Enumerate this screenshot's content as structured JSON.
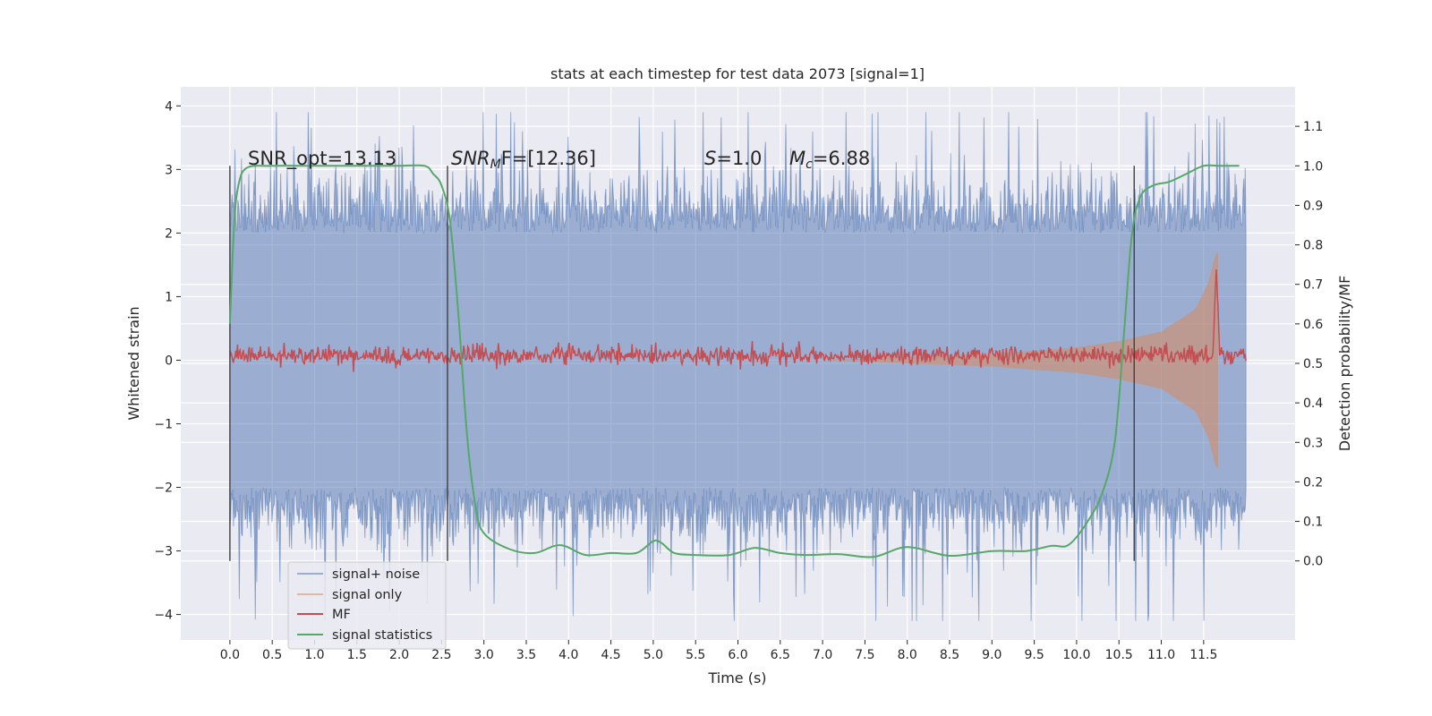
{
  "chart_data": {
    "type": "line",
    "title": "stats at each timestep for test data 2073 [signal=1]",
    "xlabel": "Time (s)",
    "ylabel": "Whitened strain",
    "ylabel_right": "Detection probability/MF",
    "xlim": [
      -0.58,
      12.58
    ],
    "ylim": [
      -4.4,
      4.3
    ],
    "ylim_right": [
      -0.2,
      1.2
    ],
    "x_ticks": [
      "0.0",
      "0.5",
      "1.0",
      "1.5",
      "2.0",
      "2.5",
      "3.0",
      "3.5",
      "4.0",
      "4.5",
      "5.0",
      "5.5",
      "6.0",
      "6.5",
      "7.0",
      "7.5",
      "8.0",
      "8.5",
      "9.0",
      "9.5",
      "10.0",
      "10.5",
      "11.0",
      "11.5"
    ],
    "y_ticks": [
      "4",
      "3",
      "2",
      "1",
      "0",
      "−1",
      "−2",
      "−3",
      "−4"
    ],
    "y_ticks_right": [
      "1.1",
      "1.0",
      "0.9",
      "0.8",
      "0.7",
      "0.6",
      "0.5",
      "0.4",
      "0.3",
      "0.2",
      "0.1",
      "0.0"
    ],
    "grid": true,
    "legend_position": "lower-left",
    "colors": {
      "signal_noise": "#4c72b0",
      "signal_only": "#dd8452",
      "mf": "#c44e52",
      "statistics": "#55a868",
      "background": "#eaeaf2",
      "vlines": "#404040"
    },
    "annotations": {
      "snr_opt": "SNR_opt=13.13",
      "snr_mf_prefix": "SNR",
      "snr_mf_sub": "M",
      "snr_mf_suffix": "F=[12.36]",
      "s_label": "S",
      "s_value": "=1.0",
      "mc_label": "M",
      "mc_sub": "c",
      "mc_value": "=6.88"
    },
    "vertical_markers": [
      0.0,
      2.57,
      10.68
    ],
    "series": [
      {
        "name": "signal+ noise",
        "kind": "noise_band",
        "x_range": [
          0.0,
          12.0
        ],
        "envelope_upper": 2.0,
        "envelope_lower": -2.0,
        "max": 3.9,
        "min": -4.1
      },
      {
        "name": "signal only",
        "kind": "chirp",
        "amplitude_points": [
          [
            7.0,
            0.0
          ],
          [
            9.0,
            0.1
          ],
          [
            10.0,
            0.2
          ],
          [
            10.5,
            0.3
          ],
          [
            11.0,
            0.45
          ],
          [
            11.4,
            0.8
          ],
          [
            11.55,
            1.2
          ],
          [
            11.65,
            1.7
          ]
        ],
        "merger_time": 11.67
      },
      {
        "name": "MF",
        "kind": "axis_right",
        "baseline": 0.52,
        "noise_amplitude": 0.012,
        "peak": {
          "x": 11.65,
          "y": 0.74
        }
      },
      {
        "name": "signal statistics",
        "kind": "axis_right",
        "x": [
          0.0,
          0.05,
          0.1,
          0.2,
          0.5,
          1.0,
          1.5,
          2.0,
          2.3,
          2.4,
          2.5,
          2.6,
          2.7,
          2.8,
          2.9,
          3.0,
          3.3,
          3.6,
          3.9,
          4.2,
          4.5,
          4.8,
          5.0,
          5.1,
          5.25,
          5.5,
          5.9,
          6.2,
          6.5,
          6.8,
          7.2,
          7.6,
          8.0,
          8.5,
          9.0,
          9.4,
          9.7,
          9.9,
          10.1,
          10.3,
          10.45,
          10.55,
          10.65,
          10.75,
          10.9,
          11.1,
          11.3,
          11.5,
          11.7,
          11.92
        ],
        "values": [
          0.6,
          0.85,
          0.95,
          0.995,
          1.0,
          1.0,
          1.0,
          1.0,
          1.0,
          0.98,
          0.95,
          0.86,
          0.62,
          0.32,
          0.14,
          0.07,
          0.03,
          0.02,
          0.04,
          0.015,
          0.02,
          0.02,
          0.05,
          0.045,
          0.02,
          0.015,
          0.015,
          0.033,
          0.02,
          0.015,
          0.017,
          0.01,
          0.035,
          0.013,
          0.025,
          0.025,
          0.038,
          0.04,
          0.09,
          0.17,
          0.3,
          0.55,
          0.82,
          0.92,
          0.95,
          0.96,
          0.98,
          1.0,
          1.0,
          1.0
        ]
      }
    ]
  }
}
